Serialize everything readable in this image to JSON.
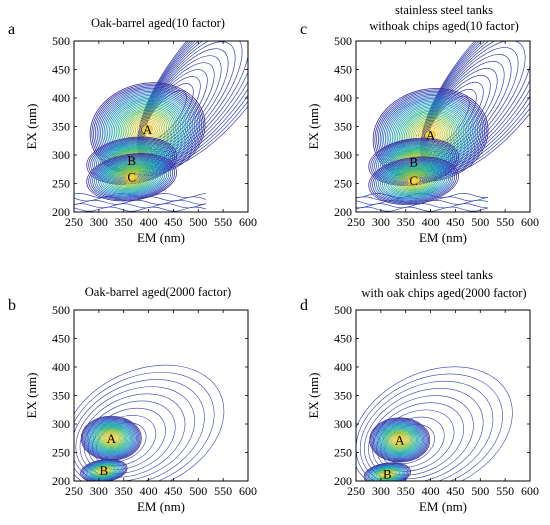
{
  "colors": {
    "contour_ramp": [
      "#3a2c9a",
      "#2f63c8",
      "#1f9bbf",
      "#2bb58e",
      "#8cc63e",
      "#e6c229",
      "#f7d94a"
    ],
    "axis": "#000000",
    "background": "#ffffff"
  },
  "chart_data": [
    {
      "type": "contour",
      "letter": "a",
      "title_lines": [
        "Oak-barrel aged(10 factor)"
      ],
      "xlabel": "EM (nm)",
      "ylabel": "EX (nm)",
      "xlim": [
        250,
        600
      ],
      "ylim": [
        200,
        500
      ],
      "xticks": [
        "250",
        "300",
        "350",
        "400",
        "450",
        "500",
        "550",
        "600"
      ],
      "yticks": [
        "200",
        "250",
        "300",
        "350",
        "400",
        "450",
        "500"
      ],
      "peaks": [
        {
          "label": "A",
          "em": 398,
          "ex": 345
        },
        {
          "label": "B",
          "em": 366,
          "ex": 290
        },
        {
          "label": "C",
          "em": 366,
          "ex": 261
        }
      ]
    },
    {
      "type": "contour",
      "letter": "c",
      "title_lines": [
        "stainless steel tanks",
        "withoak chips aged(10 factor)"
      ],
      "xlabel": "EM (nm)",
      "ylabel": "EX (nm)",
      "xlim": [
        250,
        600
      ],
      "ylim": [
        200,
        500
      ],
      "xticks": [
        "250",
        "300",
        "350",
        "400",
        "450",
        "500",
        "550",
        "600"
      ],
      "yticks": [
        "200",
        "250",
        "300",
        "350",
        "400",
        "450",
        "500"
      ],
      "peaks": [
        {
          "label": "A",
          "em": 400,
          "ex": 335
        },
        {
          "label": "B",
          "em": 366,
          "ex": 288
        },
        {
          "label": "C",
          "em": 366,
          "ex": 255
        }
      ]
    },
    {
      "type": "contour",
      "letter": "b",
      "title_lines": [
        "Oak-barrel aged(2000 factor)"
      ],
      "xlabel": "EM (nm)",
      "ylabel": "EX (nm)",
      "xlim": [
        250,
        600
      ],
      "ylim": [
        200,
        500
      ],
      "xticks": [
        "250",
        "300",
        "350",
        "400",
        "450",
        "500",
        "550",
        "600"
      ],
      "yticks": [
        "200",
        "250",
        "300",
        "350",
        "400",
        "450",
        "500"
      ],
      "peaks": [
        {
          "label": "A",
          "em": 325,
          "ex": 275
        },
        {
          "label": "B",
          "em": 310,
          "ex": 218
        }
      ]
    },
    {
      "type": "contour",
      "letter": "d",
      "title_lines": [
        "stainless steel tanks",
        "with oak chips aged(2000 factor)"
      ],
      "xlabel": "EM (nm)",
      "ylabel": "EX (nm)",
      "xlim": [
        250,
        600
      ],
      "ylim": [
        200,
        500
      ],
      "xticks": [
        "250",
        "300",
        "350",
        "400",
        "450",
        "500",
        "550",
        "600"
      ],
      "yticks": [
        "200",
        "250",
        "300",
        "350",
        "400",
        "450",
        "500"
      ],
      "peaks": [
        {
          "label": "A",
          "em": 338,
          "ex": 272
        },
        {
          "label": "B",
          "em": 313,
          "ex": 212
        }
      ]
    }
  ]
}
